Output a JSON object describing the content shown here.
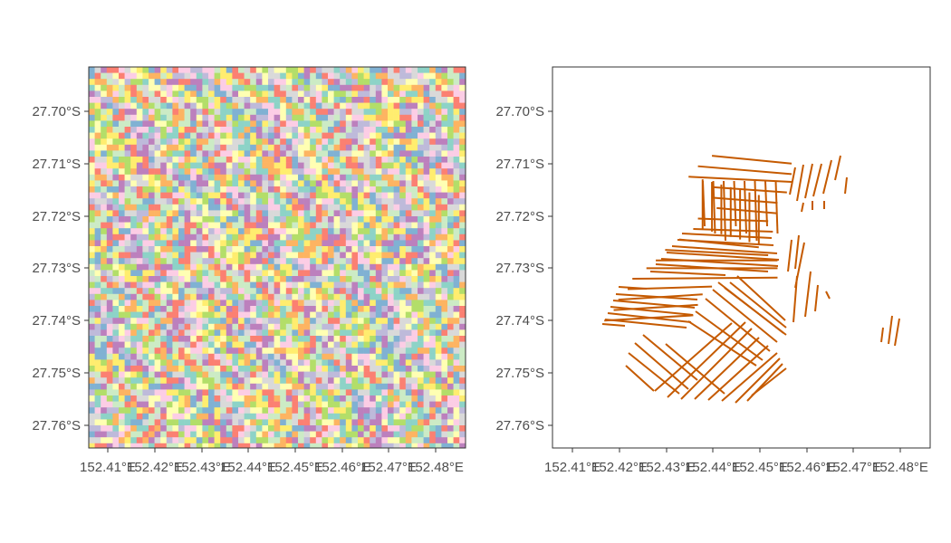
{
  "figure": {
    "background_color": "#ffffff",
    "border_color": "#333333",
    "tick_text_color": "#4d4d4d"
  },
  "left_panel": {
    "type": "raster-tile-map",
    "palette": [
      "#8dd3c7",
      "#ffffb3",
      "#bebada",
      "#fb8072",
      "#80b1d3",
      "#fdb462",
      "#b3de69",
      "#fccde5",
      "#d9d9d9",
      "#bc80bd",
      "#ccebc5",
      "#ffed6f"
    ],
    "x_ticks": [
      "152.41°E",
      "152.42°E",
      "152.43°E",
      "152.44°E",
      "152.45°E",
      "152.46°E",
      "152.47°E",
      "152.48°E"
    ],
    "y_ticks": [
      "27.70°S",
      "27.71°S",
      "27.72°S",
      "27.73°S",
      "27.74°S",
      "27.75°S",
      "27.76°S"
    ]
  },
  "right_panel": {
    "type": "line-transect-map",
    "line_color": "#c55a00",
    "x_ticks": [
      "152.41°E",
      "152.42°E",
      "152.43°E",
      "152.44°E",
      "152.45°E",
      "152.46°E",
      "152.47°E",
      "152.48°E"
    ],
    "y_ticks": [
      "27.70°S",
      "27.71°S",
      "27.72°S",
      "27.73°S",
      "27.74°S",
      "27.75°S",
      "27.76°S"
    ]
  },
  "chart_data": [
    {
      "type": "heatmap",
      "description_kind": "categorical raster tiles",
      "xlim": [
        152.406,
        152.4856
      ],
      "ylim": [
        -27.7645,
        -27.6918
      ],
      "x_ticks": [
        152.41,
        152.42,
        152.43,
        152.44,
        152.45,
        152.46,
        152.47,
        152.48
      ],
      "y_ticks": [
        -27.7,
        -27.71,
        -27.72,
        -27.73,
        -27.74,
        -27.75,
        -27.76
      ]
    },
    {
      "type": "line",
      "xlim": [
        152.406,
        152.4856
      ],
      "ylim": [
        -27.7645,
        -27.6918
      ],
      "x_ticks": [
        152.41,
        152.42,
        152.43,
        152.44,
        152.45,
        152.46,
        152.47,
        152.48
      ],
      "y_ticks": [
        -27.7,
        -27.71,
        -27.72,
        -27.73,
        -27.74,
        -27.75,
        -27.76
      ],
      "groups": [
        {
          "direction": "E-W",
          "count": 8,
          "start": [
            [
              152.44,
              -27.7085
            ],
            [
              152.437,
              -27.7105
            ],
            [
              152.435,
              -27.7125
            ],
            [
              152.44,
              -27.7145
            ],
            [
              152.44,
              -27.7165
            ],
            [
              152.441,
              -27.7185
            ],
            [
              152.437,
              -27.7205
            ],
            [
              152.436,
              -27.7225
            ]
          ],
          "end": [
            [
              152.457,
              -27.71
            ],
            [
              152.457,
              -27.712
            ],
            [
              152.457,
              -27.7135
            ],
            [
              152.456,
              -27.7155
            ],
            [
              152.454,
              -27.7175
            ],
            [
              152.454,
              -27.7195
            ],
            [
              152.452,
              -27.721
            ],
            [
              152.453,
              -27.723
            ]
          ]
        },
        {
          "direction": "N-S",
          "count": 7,
          "start": [
            [
              152.438,
              -27.713
            ],
            [
              152.44,
              -27.7135
            ],
            [
              152.442,
              -27.714
            ],
            [
              152.444,
              -27.7145
            ],
            [
              152.446,
              -27.715
            ],
            [
              152.448,
              -27.7155
            ],
            [
              152.45,
              -27.716
            ]
          ],
          "end": [
            [
              152.438,
              -27.7225
            ],
            [
              152.44,
              -27.723
            ],
            [
              152.442,
              -27.7235
            ],
            [
              152.444,
              -27.724
            ],
            [
              152.446,
              -27.7245
            ],
            [
              152.448,
              -27.725
            ],
            [
              152.45,
              -27.7255
            ]
          ]
        },
        {
          "direction": "E-W",
          "count": 9,
          "start": [
            [
              152.433,
              -27.7245
            ],
            [
              152.43,
              -27.7265
            ],
            [
              152.428,
              -27.7285
            ],
            [
              152.426,
              -27.73
            ],
            [
              152.423,
              -27.732
            ],
            [
              152.422,
              -27.734
            ],
            [
              152.42,
              -27.736
            ],
            [
              152.419,
              -27.738
            ],
            [
              152.417,
              -27.74
            ]
          ],
          "end": [
            [
              152.45,
              -27.726
            ],
            [
              152.452,
              -27.7275
            ],
            [
              152.454,
              -27.7285
            ],
            [
              152.454,
              -27.73
            ],
            [
              152.454,
              -27.7318
            ],
            [
              152.44,
              -27.7335
            ],
            [
              152.438,
              -27.735
            ],
            [
              152.437,
              -27.737
            ],
            [
              152.436,
              -27.739
            ]
          ]
        },
        {
          "direction": "NE-SW",
          "count": 12,
          "note": "right-leaning diagonal transects in the southern block"
        },
        {
          "direction": "NW-SE",
          "count": 10,
          "note": "left-leaning diagonal transects in the south-west block"
        },
        {
          "direction": "N-S",
          "count": 12,
          "note": "short near-vertical transects on the east side and isolated pair near 152.479°E"
        }
      ]
    }
  ]
}
